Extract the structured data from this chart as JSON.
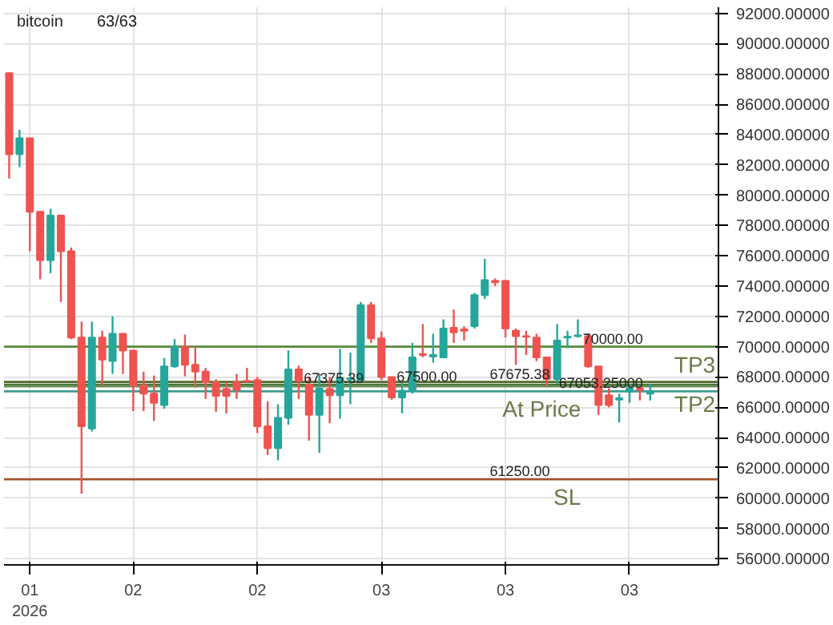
{
  "chart_data": {
    "type": "candlestick",
    "title": "bitcoin",
    "subtitle": "63/63",
    "categories": [
      null,
      null,
      "01 2026",
      null,
      null,
      null,
      null,
      null,
      null,
      null,
      null,
      null,
      "02",
      null,
      null,
      null,
      null,
      null,
      null,
      null,
      null,
      null,
      null,
      null,
      "02",
      null,
      null,
      null,
      null,
      null,
      null,
      null,
      null,
      null,
      null,
      null,
      "03",
      null,
      null,
      null,
      null,
      null,
      null,
      null,
      null,
      null,
      null,
      null,
      "03",
      null,
      null,
      null,
      null,
      null,
      null,
      null,
      null,
      null,
      null,
      null,
      "03",
      null,
      null
    ],
    "ohlc": [
      [
        88050,
        88050,
        81100,
        82700
      ],
      [
        82700,
        84300,
        81850,
        83750
      ],
      [
        83750,
        83750,
        76300,
        78900
      ],
      [
        78900,
        78900,
        74450,
        75700
      ],
      [
        75700,
        79100,
        74850,
        78650
      ],
      [
        78650,
        78650,
        72950,
        76300
      ],
      [
        76300,
        76550,
        70500,
        70600
      ],
      [
        70600,
        71650,
        60300,
        64750
      ],
      [
        64600,
        71650,
        64400,
        70600
      ],
      [
        70600,
        71050,
        67450,
        69150
      ],
      [
        69050,
        72000,
        68200,
        70850
      ],
      [
        70850,
        70850,
        68200,
        69750
      ],
      [
        69750,
        69750,
        65750,
        67450
      ],
      [
        67450,
        68350,
        65750,
        66900
      ],
      [
        66900,
        68100,
        65100,
        66300
      ],
      [
        66150,
        69250,
        65900,
        68700
      ],
      [
        68700,
        70500,
        68600,
        70000
      ],
      [
        70000,
        70800,
        68050,
        68800
      ],
      [
        68800,
        70000,
        67300,
        68350
      ],
      [
        68350,
        68600,
        66550,
        67650
      ],
      [
        67650,
        67850,
        65700,
        66750
      ],
      [
        67200,
        67650,
        65600,
        66750
      ],
      [
        67650,
        68200,
        66550,
        67150
      ],
      [
        67750,
        68600,
        67650,
        67700
      ],
      [
        67800,
        68000,
        64300,
        64750
      ],
      [
        64750,
        66400,
        62850,
        63300
      ],
      [
        63300,
        66200,
        62500,
        65300
      ],
      [
        65300,
        69750,
        64850,
        68500
      ],
      [
        68500,
        68750,
        66550,
        67750
      ],
      [
        67500,
        68000,
        63800,
        65500
      ],
      [
        65500,
        68200,
        63000,
        67250
      ],
      [
        67200,
        68000,
        64950,
        66800
      ],
      [
        66800,
        69850,
        65250,
        67950
      ],
      [
        67850,
        69600,
        66200,
        67900
      ],
      [
        67800,
        72950,
        67650,
        72750
      ],
      [
        72750,
        72950,
        70250,
        70550
      ],
      [
        70550,
        71000,
        67800,
        68000
      ],
      [
        68000,
        68000,
        66500,
        66650
      ],
      [
        66650,
        67600,
        65600,
        67100
      ],
      [
        67100,
        70250,
        66900,
        69300
      ],
      [
        69500,
        71500,
        69300,
        69450
      ],
      [
        69350,
        70850,
        68950,
        69450
      ],
      [
        69300,
        71800,
        69250,
        71200
      ],
      [
        71250,
        72450,
        70250,
        70950
      ],
      [
        71150,
        71350,
        70400,
        71050
      ],
      [
        71350,
        73550,
        71200,
        73400
      ],
      [
        73400,
        75800,
        73150,
        74400
      ],
      [
        74350,
        74500,
        74000,
        74250
      ],
      [
        74350,
        74400,
        70600,
        71200
      ],
      [
        71050,
        71200,
        68800,
        70700
      ],
      [
        70700,
        71050,
        69450,
        70650
      ],
      [
        70600,
        70850,
        69050,
        69300
      ],
      [
        69300,
        69300,
        67400,
        67850
      ],
      [
        67850,
        71500,
        67550,
        70400
      ],
      [
        70600,
        71050,
        69900,
        70650
      ],
      [
        70700,
        71800,
        70600,
        70750
      ],
      [
        70700,
        70850,
        68600,
        68700
      ],
      [
        68700,
        68700,
        65500,
        66150
      ],
      [
        66800,
        67250,
        66000,
        66150
      ],
      [
        66500,
        66900,
        65000,
        66600
      ],
      [
        67050,
        67550,
        66300,
        67250
      ],
      [
        67250,
        67400,
        66450,
        67150
      ],
      [
        66900,
        67550,
        66450,
        67050
      ]
    ],
    "colors": [
      "#ef5350",
      "#26a69a",
      "#ef5350",
      "#ef5350",
      "#26a69a",
      "#ef5350",
      "#ef5350",
      "#ef5350",
      "#26a69a",
      "#ef5350",
      "#26a69a",
      "#ef5350",
      "#ef5350",
      "#ef5350",
      "#ef5350",
      "#26a69a",
      "#26a69a",
      "#ef5350",
      "#ef5350",
      "#ef5350",
      "#ef5350",
      "#ef5350",
      "#ef5350",
      "#ef5350",
      "#ef5350",
      "#ef5350",
      "#26a69a",
      "#26a69a",
      "#ef5350",
      "#ef5350",
      "#26a69a",
      "#ef5350",
      "#26a69a",
      "#26a69a",
      "#26a69a",
      "#ef5350",
      "#ef5350",
      "#ef5350",
      "#26a69a",
      "#26a69a",
      "#ef5350",
      "#26a69a",
      "#26a69a",
      "#ef5350",
      "#ef5350",
      "#26a69a",
      "#26a69a",
      "#ef5350",
      "#ef5350",
      "#ef5350",
      "#ef5350",
      "#ef5350",
      "#ef5350",
      "#26a69a",
      "#26a69a",
      "#26a69a",
      "#ef5350",
      "#ef5350",
      "#ef5350",
      "#26a69a",
      "#26a69a",
      "#ef5350",
      "#26a69a"
    ],
    "ylim": [
      55600,
      92400
    ],
    "yticks": [
      {
        "value": 56000,
        "label": "56000.00000"
      },
      {
        "value": 58000,
        "label": "58000.00000"
      },
      {
        "value": 60000,
        "label": "60000.00000"
      },
      {
        "value": 62000,
        "label": "62000.00000"
      },
      {
        "value": 64000,
        "label": "64000.00000"
      },
      {
        "value": 66000,
        "label": "66000.00000"
      },
      {
        "value": 68000,
        "label": "68000.00000"
      },
      {
        "value": 70000,
        "label": "70000.00000"
      },
      {
        "value": 72000,
        "label": "72000.00000"
      },
      {
        "value": 74000,
        "label": "74000.00000"
      },
      {
        "value": 76000,
        "label": "76000.00000"
      },
      {
        "value": 78000,
        "label": "78000.00000"
      },
      {
        "value": 80000,
        "label": "80000.00000"
      },
      {
        "value": 82000,
        "label": "82000.00000"
      },
      {
        "value": 84000,
        "label": "84000.00000"
      },
      {
        "value": 86000,
        "label": "86000.00000"
      },
      {
        "value": 88000,
        "label": "88000.00000"
      },
      {
        "value": 90000,
        "label": "90000.00000"
      },
      {
        "value": 92000,
        "label": "92000.00000"
      }
    ],
    "grid": true,
    "ref_lines": [
      {
        "axis": "y",
        "value": 70000,
        "label": "70000.00",
        "color": "#5a8a3a"
      },
      {
        "axis": "y",
        "value": 67675.38,
        "label": "67675.38",
        "color": "#556b2f"
      },
      {
        "axis": "y",
        "value": 67500,
        "label": "67500.00",
        "color": "#4a7a3a"
      },
      {
        "axis": "y",
        "value": 67375.39,
        "label": "67375.39",
        "color": "#6b8e5a"
      },
      {
        "axis": "y",
        "value": 67053.25,
        "label": "67053.25000",
        "color": "#3d9c8c"
      },
      {
        "axis": "y",
        "value": 61250,
        "label": "61250.00",
        "color": "#a0522d"
      }
    ],
    "annotations": [
      {
        "text": "TP3",
        "y": 70000
      },
      {
        "text": "At Price",
        "y": 67053.25
      },
      {
        "text": "TP2",
        "y": 67375.39
      },
      {
        "text": "SL",
        "y": 61250
      }
    ]
  }
}
